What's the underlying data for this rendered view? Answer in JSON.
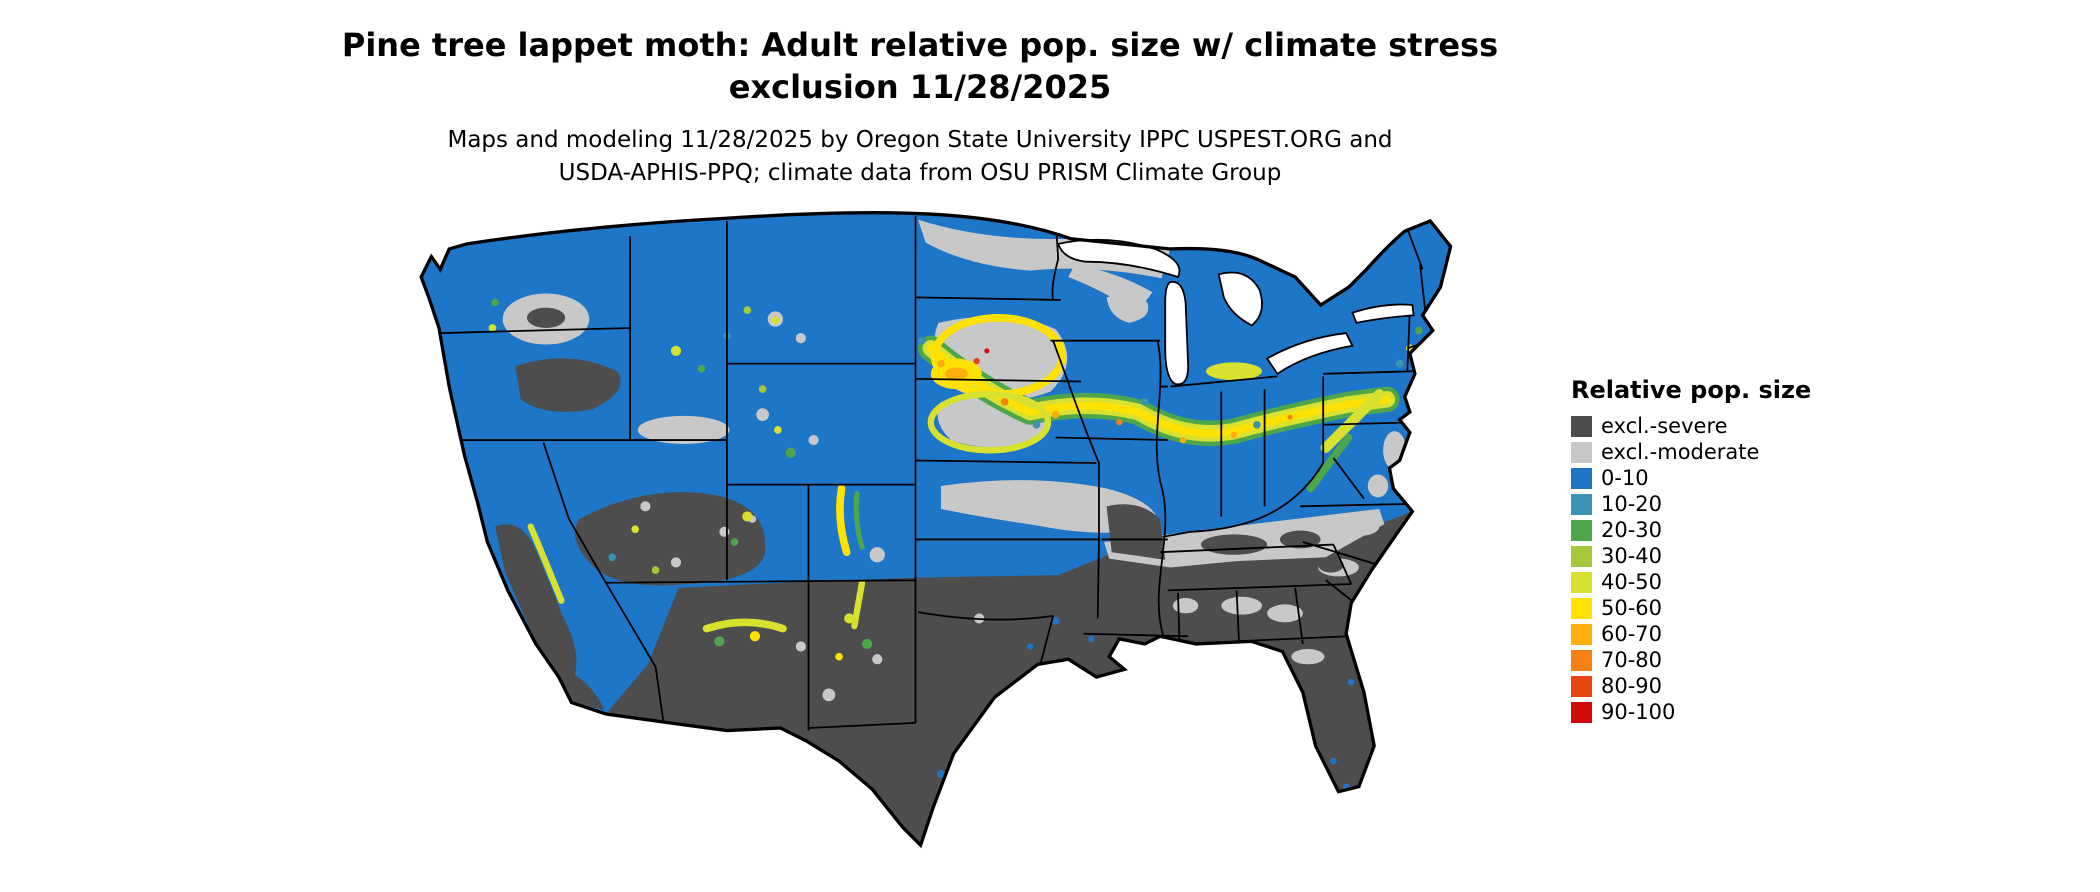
{
  "title": {
    "line1": "Pine tree lappet moth: Adult relative pop. size w/ climate stress",
    "line2": "exclusion 11/28/2025"
  },
  "subtitle": {
    "line1": "Maps and modeling 11/28/2025 by Oregon State University IPPC USPEST.ORG and",
    "line2": "USDA-APHIS-PPQ; climate data from OSU PRISM Climate Group"
  },
  "legend": {
    "title": "Relative pop. size",
    "items": [
      {
        "label": "excl.-severe",
        "color": "#4d4d4d"
      },
      {
        "label": "excl.-moderate",
        "color": "#c8c8c8"
      },
      {
        "label": "0-10",
        "color": "#1d76c8"
      },
      {
        "label": "10-20",
        "color": "#3a92b5"
      },
      {
        "label": "20-30",
        "color": "#4da64b"
      },
      {
        "label": "30-40",
        "color": "#a6c83b"
      },
      {
        "label": "40-50",
        "color": "#d8e030"
      },
      {
        "label": "50-60",
        "color": "#ffe203"
      },
      {
        "label": "60-70",
        "color": "#fdae0d"
      },
      {
        "label": "70-80",
        "color": "#f48112"
      },
      {
        "label": "80-90",
        "color": "#e8440f"
      },
      {
        "label": "90-100",
        "color": "#cf0c0c"
      }
    ]
  },
  "map": {
    "colors": {
      "severe": "#4d4d4d",
      "moderate": "#c8c8c8",
      "b010": "#1d76c8",
      "b1020": "#3a92b5",
      "g2030": "#4da64b",
      "g3040": "#a6c83b",
      "y4050": "#d8e030",
      "y5060": "#ffe203",
      "o6070": "#fdae0d",
      "o7080": "#f48112",
      "r8090": "#e8440f",
      "r90100": "#cf0c0c",
      "water": "#ffffff",
      "border": "#000000"
    }
  }
}
